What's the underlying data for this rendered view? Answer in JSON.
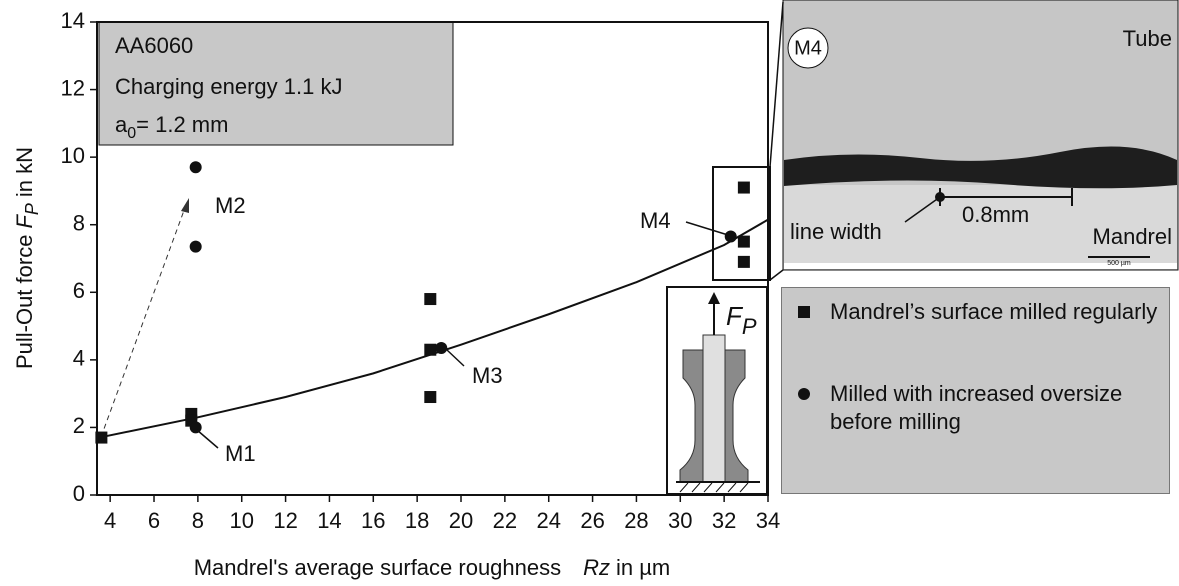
{
  "chart_data": {
    "type": "scatter",
    "x_label": {
      "text": "Mandrel's average surface roughness",
      "italic": "Rz",
      "unit": "in µm"
    },
    "y_label": {
      "text": "Pull-Out  force",
      "symbol": "F",
      "subscript": "P",
      "unit": "in kN"
    },
    "xlim": [
      3.4,
      34
    ],
    "xticks": [
      4,
      6,
      8,
      10,
      12,
      14,
      16,
      18,
      20,
      22,
      24,
      26,
      28,
      30,
      32,
      34
    ],
    "ylim": [
      0,
      14
    ],
    "yticks": [
      0,
      2,
      4,
      6,
      8,
      10,
      12,
      14
    ],
    "series": [
      {
        "name": "Mandrel’s surface milled regularly",
        "color": "#111111",
        "marker": "square",
        "x": [
          3.6,
          7.7,
          7.7,
          18.6,
          18.6,
          18.6,
          32.9,
          32.9,
          32.9
        ],
        "values": [
          1.7,
          2.4,
          2.2,
          5.8,
          4.3,
          2.9,
          9.1,
          7.5,
          6.9
        ]
      },
      {
        "name": "Milled with increased oversize before milling",
        "color": "#111111",
        "marker": "circle",
        "x": [
          7.9,
          7.9,
          7.9,
          19.1,
          32.3
        ],
        "values": [
          9.7,
          7.35,
          2.0,
          4.35,
          7.65
        ]
      }
    ],
    "curve": {
      "x": [
        3.5,
        8,
        12,
        16,
        20,
        24,
        28,
        32,
        34
      ],
      "y": [
        1.7,
        2.3,
        2.9,
        3.6,
        4.45,
        5.35,
        6.3,
        7.4,
        8.15
      ]
    },
    "annotations": [
      "M1",
      "M2",
      "M3",
      "M4"
    ],
    "info_box": {
      "lines": [
        "AA6060",
        "Charging energy 1.1 kJ"
      ],
      "a": "a",
      "a_sub": "0",
      "a_rest": "= 1.2 mm"
    },
    "sketch": {
      "symbol": "F",
      "subscript": "P"
    },
    "micrograph": {
      "label": "M4",
      "top": "Tube",
      "bottom": "Mandrel",
      "line": "line width",
      "length": "0.8mm",
      "scale": "500 µm"
    }
  }
}
